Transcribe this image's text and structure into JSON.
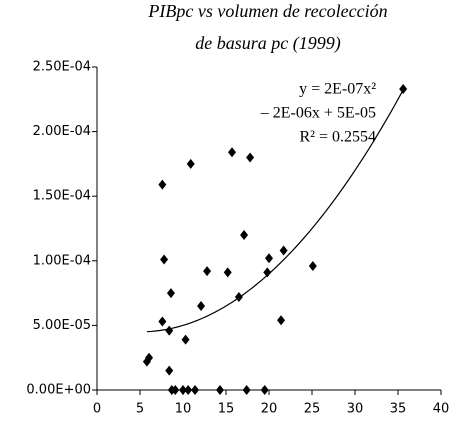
{
  "chart_data": {
    "type": "scatter",
    "title": [
      "PIBpc vs volumen de recolección",
      "de basura pc (1999)"
    ],
    "annotation": [
      "y = 2E-07x²",
      "– 2E-06x + 5E-05",
      "R² = 0.2554"
    ],
    "color": "#000000",
    "trendline": {
      "type": "polynomial",
      "coefficients": [
        2e-07,
        -2e-06,
        5e-05
      ]
    },
    "x": [
      6.05,
      5.8,
      7.6,
      7.8,
      7.6,
      8.4,
      8.6,
      8.4,
      8.7,
      9.1,
      10.0,
      10.6,
      11.4,
      10.3,
      10.9,
      12.1,
      12.8,
      14.3,
      15.2,
      15.7,
      16.5,
      17.1,
      17.8,
      17.4,
      19.5,
      20.0,
      19.8,
      21.7,
      21.4,
      25.1,
      35.6
    ],
    "values": [
      2.5e-05,
      2.2e-05,
      0.000159,
      0.000101,
      5.3e-05,
      4.6e-05,
      7.5e-05,
      1.5e-05,
      0,
      0,
      0,
      0,
      0,
      3.9e-05,
      0.000175,
      6.5e-05,
      9.2e-05,
      0,
      9.1e-05,
      0.000184,
      7.2e-05,
      0.00012,
      0.00018,
      0,
      0,
      0.000102,
      9.1e-05,
      0.000108,
      5.4e-05,
      9.6e-05,
      0.000233
    ],
    "xlim": [
      0,
      40
    ],
    "xticks": [
      0,
      5,
      10,
      15,
      20,
      25,
      30,
      35,
      40
    ],
    "ylim": [
      0,
      0.00025
    ],
    "yticks": [
      {
        "value": 0,
        "label": "0.00E+00"
      },
      {
        "value": 5e-05,
        "label": "5.00E-05"
      },
      {
        "value": 0.0001,
        "label": "1.00E-04"
      },
      {
        "value": 0.00015,
        "label": "1.50E-04"
      },
      {
        "value": 0.0002,
        "label": "2.00E-04"
      },
      {
        "value": 0.00025,
        "label": "2.50E-04"
      }
    ]
  }
}
